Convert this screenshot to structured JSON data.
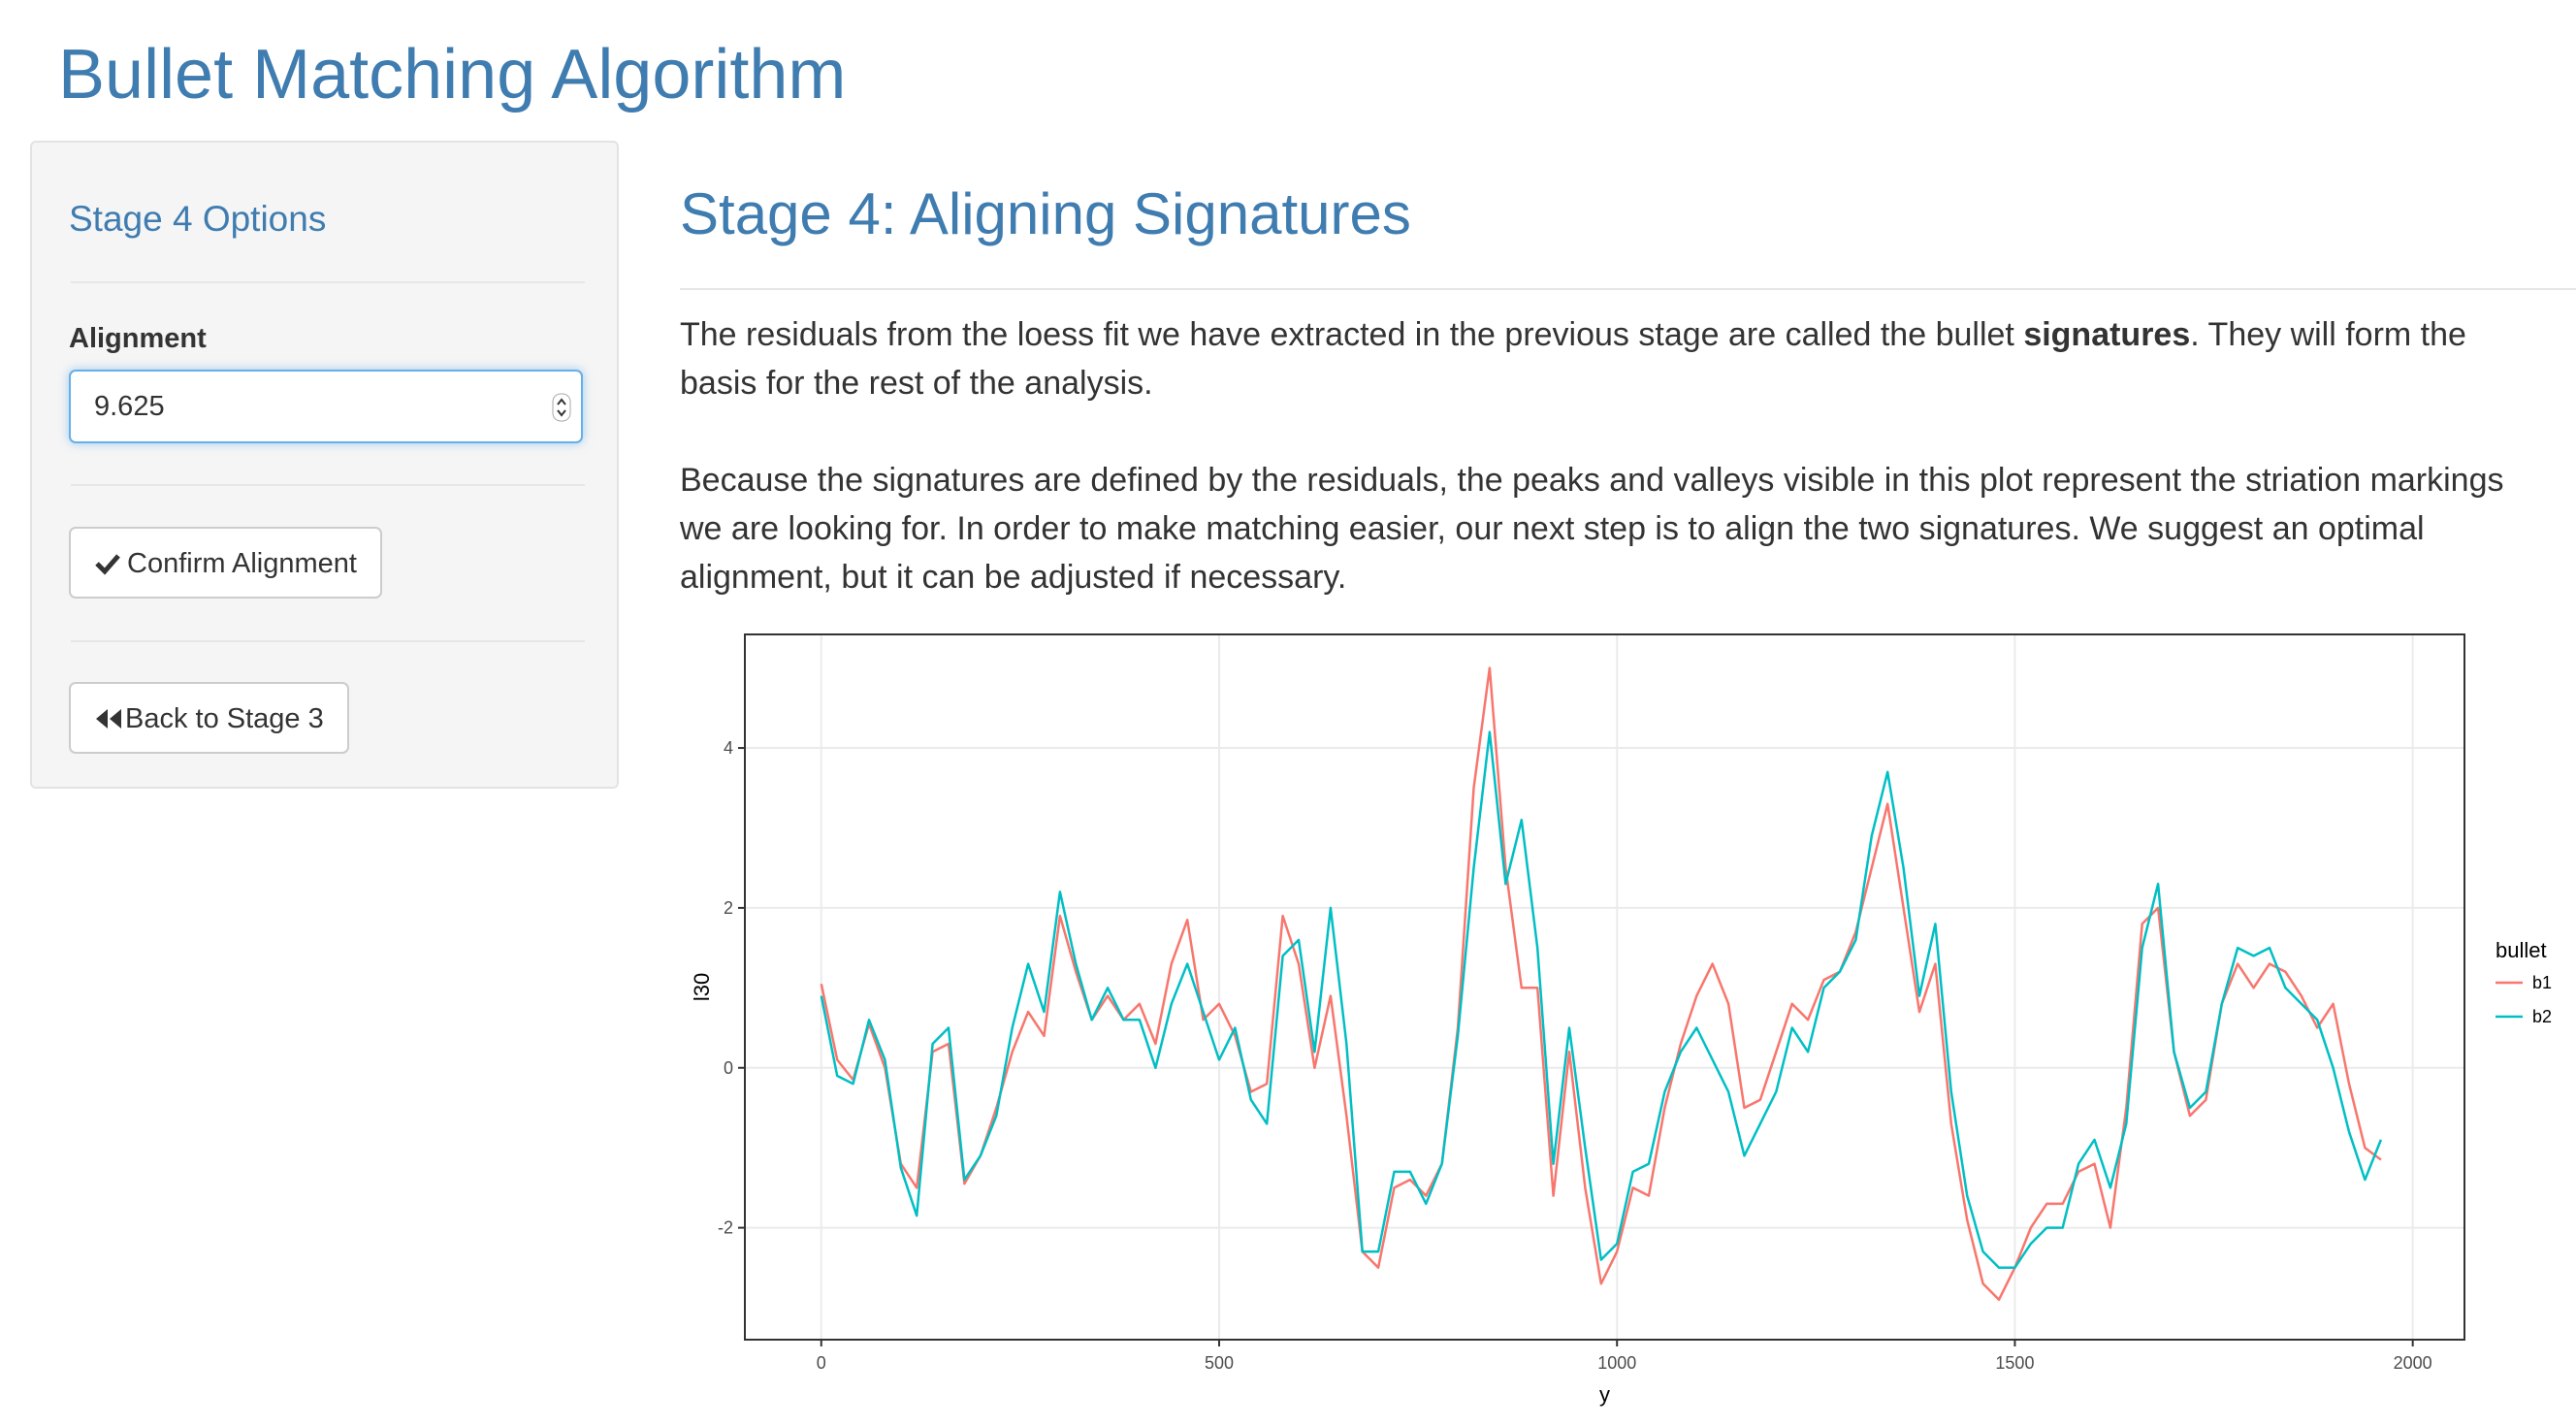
{
  "header": {
    "title": "Bullet Matching Algorithm"
  },
  "sidebar": {
    "heading": "Stage 4 Options",
    "input_label": "Alignment",
    "input_value": "9.625",
    "confirm_button": "Confirm Alignment",
    "back_button": "Back to Stage 3"
  },
  "main": {
    "heading": "Stage 4: Aligning Signatures",
    "paragraphs": [
      [
        "The residuals from the loess fit we have extracted in the previous stage are called the bullet ",
        "signatures",
        ". They will form the basis for the rest of the analysis."
      ],
      [
        "Because the signatures are defined by the residuals, the peaks and valleys visible in this plot represent the striation markings we are looking for. In order to make matching easier, our next step is to align the two signatures. We suggest an optimal alignment, but it can be adjusted if necessary."
      ]
    ]
  },
  "chart_data": {
    "type": "line",
    "x_label": "y",
    "y_label": "l30",
    "legend_title": "bullet",
    "grid": true,
    "xlim": [
      -96,
      2065
    ],
    "ylim": [
      -3.4,
      5.42
    ],
    "xticks": [
      0,
      500,
      1000,
      1500,
      2000
    ],
    "yticks": [
      -2,
      0,
      2,
      4
    ],
    "x": [
      0,
      20,
      40,
      60,
      80,
      100,
      120,
      140,
      160,
      180,
      200,
      220,
      240,
      260,
      280,
      300,
      320,
      340,
      360,
      380,
      400,
      420,
      440,
      460,
      480,
      500,
      520,
      540,
      560,
      580,
      600,
      620,
      640,
      660,
      680,
      700,
      720,
      740,
      760,
      780,
      800,
      820,
      840,
      860,
      880,
      900,
      920,
      940,
      960,
      980,
      1000,
      1020,
      1040,
      1060,
      1080,
      1100,
      1120,
      1140,
      1160,
      1180,
      1200,
      1220,
      1240,
      1260,
      1280,
      1300,
      1320,
      1340,
      1360,
      1380,
      1400,
      1420,
      1440,
      1460,
      1480,
      1500,
      1520,
      1540,
      1560,
      1580,
      1600,
      1620,
      1640,
      1660,
      1680,
      1700,
      1720,
      1740,
      1760,
      1780,
      1800,
      1820,
      1840,
      1860,
      1880,
      1900,
      1920,
      1940,
      1960
    ],
    "series": [
      {
        "name": "b1",
        "color": "#F8766D",
        "values": [
          1.05,
          0.1,
          -0.15,
          0.55,
          0,
          -1.2,
          -1.5,
          0.2,
          0.3,
          -1.45,
          -1.1,
          -0.5,
          0.2,
          0.7,
          0.4,
          1.9,
          1.2,
          0.6,
          0.9,
          0.6,
          0.8,
          0.3,
          1.3,
          1.85,
          0.6,
          0.8,
          0.4,
          -0.3,
          -0.2,
          1.9,
          1.3,
          0.0,
          0.9,
          -0.6,
          -2.3,
          -2.5,
          -1.5,
          -1.4,
          -1.6,
          -1.2,
          0.5,
          3.5,
          5.0,
          2.5,
          1.0,
          1.0,
          -1.6,
          0.2,
          -1.5,
          -2.7,
          -2.3,
          -1.5,
          -1.6,
          -0.5,
          0.3,
          0.9,
          1.3,
          0.8,
          -0.5,
          -0.4,
          0.2,
          0.8,
          0.6,
          1.1,
          1.2,
          1.7,
          2.5,
          3.3,
          2.0,
          0.7,
          1.3,
          -0.7,
          -1.9,
          -2.7,
          -2.9,
          -2.5,
          -2.0,
          -1.7,
          -1.7,
          -1.3,
          -1.2,
          -2.0,
          -0.5,
          1.8,
          2.0,
          0.2,
          -0.6,
          -0.4,
          0.8,
          1.3,
          1.0,
          1.3,
          1.2,
          0.9,
          0.5,
          0.8,
          -0.2,
          -1.0,
          -1.15
        ]
      },
      {
        "name": "b2",
        "color": "#00BFC4",
        "values": [
          0.9,
          -0.1,
          -0.2,
          0.6,
          0.1,
          -1.25,
          -1.85,
          0.3,
          0.5,
          -1.4,
          -1.1,
          -0.6,
          0.5,
          1.3,
          0.7,
          2.2,
          1.3,
          0.6,
          1.0,
          0.6,
          0.6,
          0.0,
          0.8,
          1.3,
          0.7,
          0.1,
          0.5,
          -0.4,
          -0.7,
          1.4,
          1.6,
          0.2,
          2.0,
          0.3,
          -2.3,
          -2.3,
          -1.3,
          -1.3,
          -1.7,
          -1.2,
          0.4,
          2.5,
          4.2,
          2.3,
          3.1,
          1.5,
          -1.2,
          0.5,
          -1.0,
          -2.4,
          -2.2,
          -1.3,
          -1.2,
          -0.3,
          0.2,
          0.5,
          0.1,
          -0.3,
          -1.1,
          -0.7,
          -0.3,
          0.5,
          0.2,
          1.0,
          1.2,
          1.6,
          2.9,
          3.7,
          2.5,
          0.9,
          1.8,
          -0.3,
          -1.6,
          -2.3,
          -2.5,
          -2.5,
          -2.2,
          -2.0,
          -2.0,
          -1.2,
          -0.9,
          -1.5,
          -0.7,
          1.5,
          2.3,
          0.2,
          -0.5,
          -0.3,
          0.8,
          1.5,
          1.4,
          1.5,
          1.0,
          0.8,
          0.6,
          0.0,
          -0.8,
          -1.4,
          -0.9
        ]
      }
    ]
  }
}
